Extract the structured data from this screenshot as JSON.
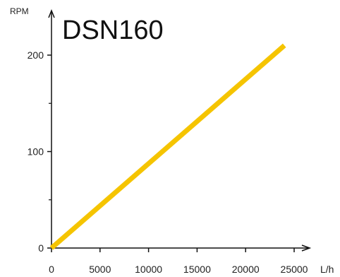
{
  "chart_data": {
    "type": "line",
    "title": "DSN160",
    "xlabel": "L/h",
    "ylabel": "RPM",
    "xlim": [
      0,
      25000
    ],
    "ylim": [
      0,
      200
    ],
    "x_ticks": [
      0,
      5000,
      10000,
      15000,
      20000,
      25000
    ],
    "y_ticks": [
      0,
      100,
      200
    ],
    "y_minor_ticks": [
      50,
      150
    ],
    "grid": false,
    "series": [
      {
        "color": "#F5C400",
        "x": [
          0,
          24000
        ],
        "y": [
          0,
          210
        ]
      }
    ]
  }
}
